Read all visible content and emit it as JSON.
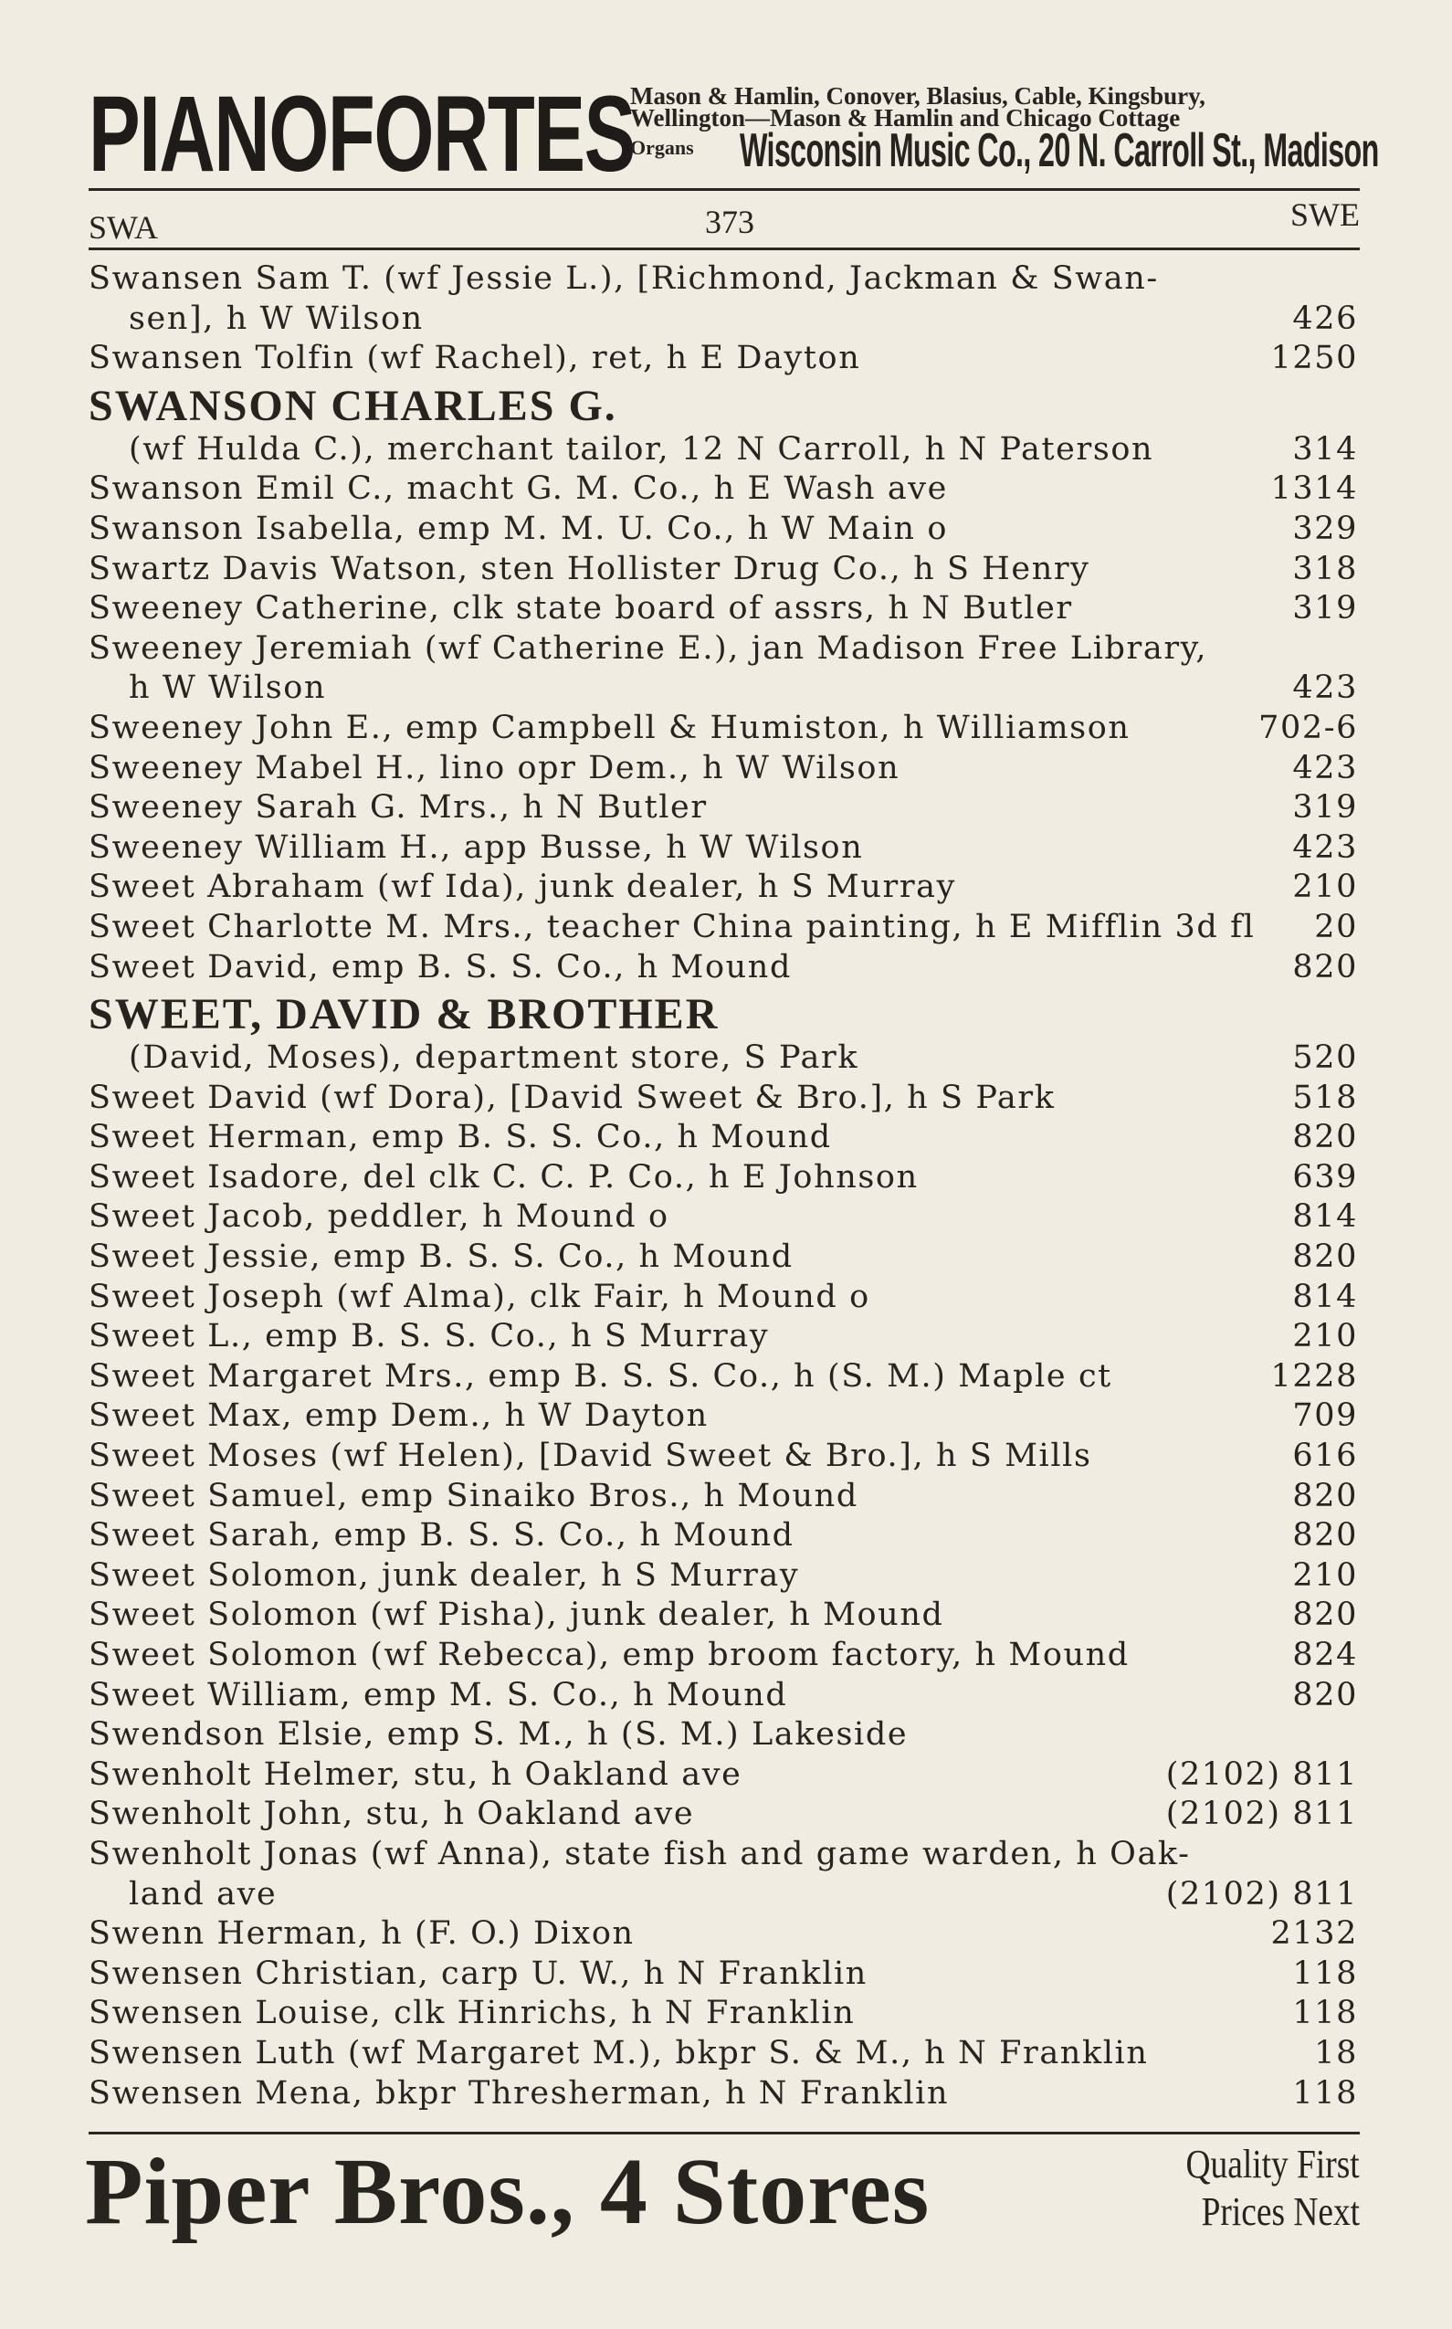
{
  "top_ad": {
    "headline": "PIANOFORTES",
    "line1": "Mason & Hamlin, Conover, Blasius, Cable, Kingsbury,",
    "line2": "Wellington—Mason & Hamlin and Chicago Cottage",
    "line3_prefix": "Organs",
    "line3_company": "Wisconsin Music Co., 20 N. Carroll St., Madison"
  },
  "running_head": {
    "left": "SWA",
    "page": "373",
    "right": "SWE"
  },
  "entries": [
    {
      "text": "Swansen Sam T. (wf Jessie L.), [Richmond, Jackman & Swan-",
      "num": ""
    },
    {
      "text": "sen], h W Wilson",
      "num": "426",
      "indent": true
    },
    {
      "text": "Swansen Tolfin (wf Rachel), ret, h E Dayton",
      "num": "1250"
    },
    {
      "text": "SWANSON CHARLES G.",
      "num": "",
      "heading": true
    },
    {
      "text": "(wf Hulda C.), merchant tailor, 12 N Carroll, h N Paterson",
      "num": "314",
      "indent": true
    },
    {
      "text": "Swanson Emil C., macht G. M. Co., h E Wash ave",
      "num": "1314"
    },
    {
      "text": "Swanson Isabella, emp M. M. U. Co., h W Main o",
      "num": "329"
    },
    {
      "text": "Swartz Davis Watson, sten Hollister Drug Co., h S Henry",
      "num": "318"
    },
    {
      "text": "Sweeney Catherine, clk state board of assrs, h N Butler",
      "num": "319"
    },
    {
      "text": "Sweeney Jeremiah (wf Catherine E.), jan Madison Free Library,",
      "num": ""
    },
    {
      "text": "h W Wilson",
      "num": "423",
      "indent": true
    },
    {
      "text": "Sweeney John E., emp Campbell & Humiston, h Williamson",
      "num": "702-6"
    },
    {
      "text": "Sweeney Mabel H., lino opr Dem., h W Wilson",
      "num": "423"
    },
    {
      "text": "Sweeney Sarah G. Mrs., h N Butler",
      "num": "319"
    },
    {
      "text": "Sweeney William H., app Busse, h W Wilson",
      "num": "423"
    },
    {
      "text": "Sweet Abraham (wf Ida), junk dealer, h S Murray",
      "num": "210"
    },
    {
      "text": "Sweet Charlotte M. Mrs., teacher China painting, h E Mifflin 3d fl",
      "num": "20"
    },
    {
      "text": "Sweet David, emp B. S. S. Co., h Mound",
      "num": "820"
    },
    {
      "text": "SWEET, DAVID & BROTHER",
      "num": "",
      "heading": true
    },
    {
      "text": "(David, Moses), department store, S Park",
      "num": "520",
      "indent": true
    },
    {
      "text": "Sweet David (wf Dora), [David Sweet & Bro.], h S Park",
      "num": "518"
    },
    {
      "text": "Sweet Herman, emp B. S. S. Co., h Mound",
      "num": "820"
    },
    {
      "text": "Sweet Isadore, del clk C. C. P. Co., h E Johnson",
      "num": "639"
    },
    {
      "text": "Sweet Jacob, peddler, h Mound o",
      "num": "814"
    },
    {
      "text": "Sweet Jessie, emp B. S. S. Co., h Mound",
      "num": "820"
    },
    {
      "text": "Sweet Joseph (wf Alma), clk Fair, h Mound o",
      "num": "814"
    },
    {
      "text": "Sweet L., emp B. S. S. Co., h S Murray",
      "num": "210"
    },
    {
      "text": "Sweet Margaret Mrs., emp B. S. S. Co., h (S. M.) Maple ct",
      "num": "1228"
    },
    {
      "text": "Sweet Max, emp Dem., h W Dayton",
      "num": "709"
    },
    {
      "text": "Sweet Moses (wf Helen), [David Sweet & Bro.], h S Mills",
      "num": "616"
    },
    {
      "text": "Sweet Samuel, emp Sinaiko Bros., h Mound",
      "num": "820"
    },
    {
      "text": "Sweet Sarah, emp B. S. S. Co., h Mound",
      "num": "820"
    },
    {
      "text": "Sweet Solomon, junk dealer, h S Murray",
      "num": "210"
    },
    {
      "text": "Sweet Solomon (wf Pisha), junk dealer, h Mound",
      "num": "820"
    },
    {
      "text": "Sweet Solomon (wf Rebecca), emp broom factory, h Mound",
      "num": "824"
    },
    {
      "text": "Sweet William, emp M. S. Co., h Mound",
      "num": "820"
    },
    {
      "text": "Swendson Elsie, emp S. M., h (S. M.) Lakeside",
      "num": ""
    },
    {
      "text": "Swenholt Helmer, stu, h Oakland ave",
      "num": "(2102) 811"
    },
    {
      "text": "Swenholt John, stu, h Oakland ave",
      "num": "(2102) 811"
    },
    {
      "text": "Swenholt Jonas (wf Anna), state fish and game warden, h Oak-",
      "num": ""
    },
    {
      "text": "land ave",
      "num": "(2102) 811",
      "indent": true
    },
    {
      "text": "Swenn Herman, h (F. O.) Dixon",
      "num": "2132"
    },
    {
      "text": "Swensen Christian, carp U. W., h N Franklin",
      "num": "118"
    },
    {
      "text": "Swensen Louise, clk Hinrichs, h N Franklin",
      "num": "118"
    },
    {
      "text": "Swensen Luth (wf Margaret M.), bkpr S. & M., h N Franklin",
      "num": "18"
    },
    {
      "text": "Swensen Mena, bkpr Thresherman, h N Franklin",
      "num": "118"
    }
  ],
  "bottom_ad": {
    "headline": "Piper Bros., 4 Stores",
    "slogan_line1": "Quality First",
    "slogan_line2": "Prices Next"
  }
}
